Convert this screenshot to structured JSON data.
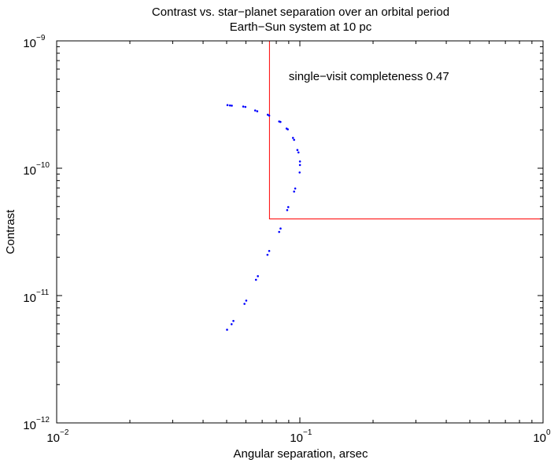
{
  "chart_data": {
    "type": "scatter",
    "title": "Contrast vs. star−planet separation over an orbital period",
    "subtitle": "Earth−Sun system at 10 pc",
    "xlabel": "Angular separation, arsec",
    "ylabel": "Contrast",
    "xscale": "log",
    "yscale": "log",
    "xlim": [
      0.01,
      1
    ],
    "ylim": [
      1e-12,
      1e-09
    ],
    "grid": false,
    "x_ticks": [
      {
        "base": "10",
        "exp": "−2",
        "value": 0.01
      },
      {
        "base": "10",
        "exp": "−1",
        "value": 0.1
      },
      {
        "base": "10",
        "exp": "0",
        "value": 1
      }
    ],
    "y_ticks": [
      {
        "base": "10",
        "exp": "−12",
        "value": 1e-12
      },
      {
        "base": "10",
        "exp": "−11",
        "value": 1e-11
      },
      {
        "base": "10",
        "exp": "−10",
        "value": 1e-10
      },
      {
        "base": "10",
        "exp": "−9",
        "value": 1e-09
      }
    ],
    "series": [
      {
        "color": "#0000ff",
        "marker": "dot",
        "points": [
          [
            0.0504,
            3.13e-10
          ],
          [
            0.0516,
            3.11e-10
          ],
          [
            0.0525,
            3.1e-10
          ],
          [
            0.0585,
            3.05e-10
          ],
          [
            0.0597,
            3.03e-10
          ],
          [
            0.0655,
            2.84e-10
          ],
          [
            0.0668,
            2.8e-10
          ],
          [
            0.0738,
            2.63e-10
          ],
          [
            0.0748,
            2.59e-10
          ],
          [
            0.0822,
            2.33e-10
          ],
          [
            0.0832,
            2.31e-10
          ],
          [
            0.0882,
            2.05e-10
          ],
          [
            0.0892,
            2.02e-10
          ],
          [
            0.0937,
            1.73e-10
          ],
          [
            0.0947,
            1.67e-10
          ],
          [
            0.0977,
            1.39e-10
          ],
          [
            0.0987,
            1.33e-10
          ],
          [
            0.1001,
            1.13e-10
          ],
          [
            0.1001,
            1.06e-10
          ],
          [
            0.0998,
            9.26e-11
          ],
          [
            0.0957,
            6.93e-11
          ],
          [
            0.0947,
            6.56e-11
          ],
          [
            0.0896,
            4.95e-11
          ],
          [
            0.0887,
            4.69e-11
          ],
          [
            0.0833,
            3.36e-11
          ],
          [
            0.0822,
            3.16e-11
          ],
          [
            0.0748,
            2.24e-11
          ],
          [
            0.0736,
            2.09e-11
          ],
          [
            0.0672,
            1.42e-11
          ],
          [
            0.066,
            1.33e-11
          ],
          [
            0.0602,
            9.13e-12
          ],
          [
            0.0592,
            8.61e-12
          ],
          [
            0.0533,
            6.32e-12
          ],
          [
            0.0524,
            5.96e-12
          ],
          [
            0.0502,
            5.39e-12
          ]
        ]
      }
    ],
    "boundary": {
      "color": "#ff0000",
      "iwa": 0.075,
      "contrast_floor": 4e-11
    },
    "annotation": {
      "text": "single−visit completeness 0.47",
      "x": 0.09,
      "y": 4.9e-10
    }
  }
}
